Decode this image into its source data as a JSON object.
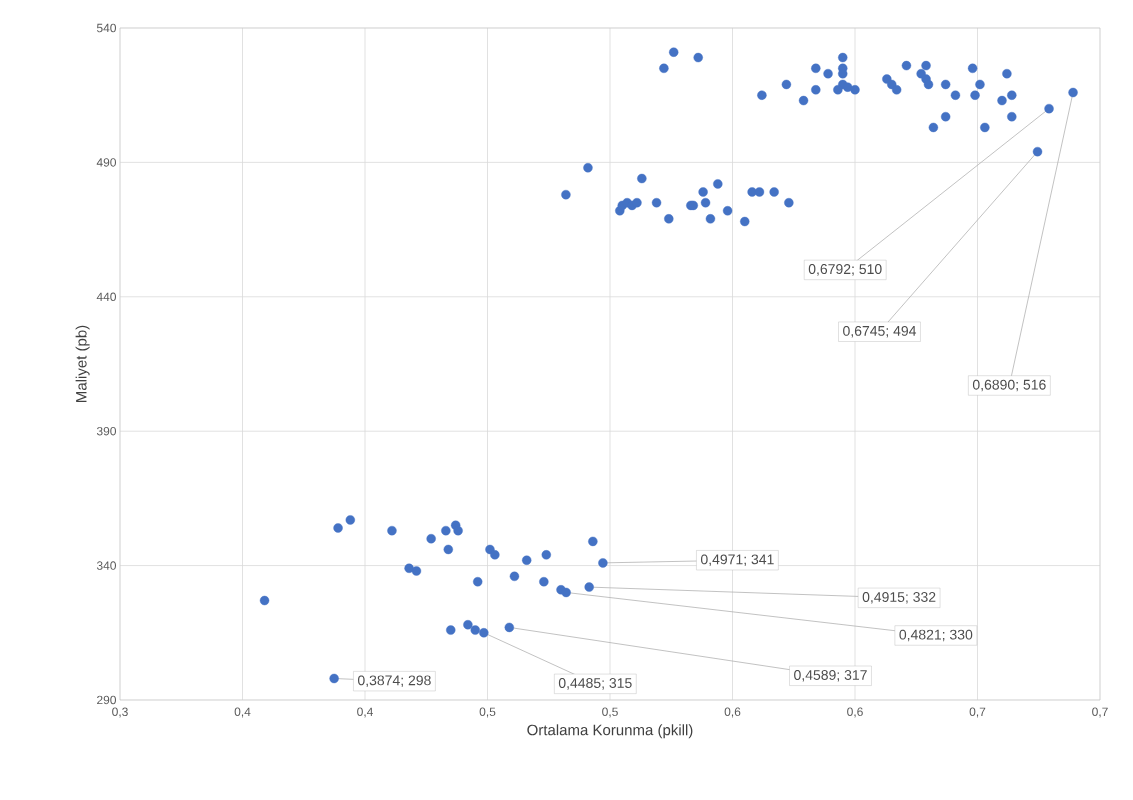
{
  "chart_data": {
    "type": "scatter",
    "xlabel": "Ortalama Korunma (pkill)",
    "ylabel": "Maliyet (pb)",
    "color": "#4472c4",
    "marker": "circle",
    "grid": true,
    "xlim": [
      0.3,
      0.7
    ],
    "ylim": [
      290,
      540
    ],
    "xticks": [
      {
        "value": 0.3,
        "label": "0,3"
      },
      {
        "value": 0.35,
        "label": "0,4"
      },
      {
        "value": 0.4,
        "label": "0,4"
      },
      {
        "value": 0.45,
        "label": "0,5"
      },
      {
        "value": 0.5,
        "label": "0,5"
      },
      {
        "value": 0.55,
        "label": "0,6"
      },
      {
        "value": 0.6,
        "label": "0,6"
      },
      {
        "value": 0.65,
        "label": "0,7"
      },
      {
        "value": 0.7,
        "label": "0,7"
      }
    ],
    "yticks": [
      290,
      340,
      390,
      440,
      490,
      540
    ],
    "x": [
      0.526,
      0.522,
      0.536,
      0.595,
      0.595,
      0.595,
      0.595,
      0.584,
      0.589,
      0.584,
      0.593,
      0.597,
      0.6,
      0.562,
      0.572,
      0.579,
      0.613,
      0.615,
      0.617,
      0.621,
      0.629,
      0.627,
      0.629,
      0.63,
      0.637,
      0.641,
      0.632,
      0.637,
      0.648,
      0.651,
      0.649,
      0.653,
      0.662,
      0.664,
      0.66,
      0.664,
      0.6792,
      0.6745,
      0.689,
      0.491,
      0.482,
      0.504,
      0.505,
      0.507,
      0.509,
      0.511,
      0.513,
      0.519,
      0.524,
      0.533,
      0.534,
      0.538,
      0.539,
      0.541,
      0.544,
      0.548,
      0.555,
      0.558,
      0.561,
      0.567,
      0.573,
      0.389,
      0.394,
      0.411,
      0.427,
      0.433,
      0.434,
      0.437,
      0.438,
      0.418,
      0.421,
      0.359,
      0.451,
      0.453,
      0.474,
      0.466,
      0.446,
      0.461,
      0.473,
      0.493,
      0.4971,
      0.48,
      0.4821,
      0.4915,
      0.4589,
      0.442,
      0.445,
      0.4485,
      0.435,
      0.3874
    ],
    "values": [
      531,
      525,
      529,
      529,
      525,
      523,
      519,
      525,
      523,
      517,
      517,
      518,
      517,
      515,
      519,
      513,
      521,
      519,
      517,
      526,
      526,
      523,
      521,
      519,
      519,
      515,
      503,
      507,
      525,
      519,
      515,
      503,
      523,
      515,
      513,
      507,
      510,
      494,
      516,
      488,
      478,
      472,
      474,
      475,
      474,
      475,
      484,
      475,
      469,
      474,
      474,
      479,
      475,
      469,
      482,
      472,
      468,
      479,
      479,
      479,
      475,
      354,
      357,
      353,
      350,
      353,
      346,
      355,
      353,
      339,
      338,
      327,
      346,
      344,
      344,
      342,
      334,
      336,
      334,
      349,
      341,
      331,
      330,
      332,
      317,
      318,
      316,
      315,
      316,
      298
    ],
    "annotations": [
      {
        "text": "0,6792; 510",
        "x": 0.6792,
        "y": 510
      },
      {
        "text": "0,6745; 494",
        "x": 0.6745,
        "y": 494
      },
      {
        "text": "0,6890; 516",
        "x": 0.689,
        "y": 516
      },
      {
        "text": "0,4971; 341",
        "x": 0.4971,
        "y": 341
      },
      {
        "text": "0,4915; 332",
        "x": 0.4915,
        "y": 332
      },
      {
        "text": "0,4821; 330",
        "x": 0.4821,
        "y": 330
      },
      {
        "text": "0,4589; 317",
        "x": 0.4589,
        "y": 317
      },
      {
        "text": "0,4485; 315",
        "x": 0.4485,
        "y": 315
      },
      {
        "text": "0,3874; 298",
        "x": 0.3874,
        "y": 298
      }
    ]
  }
}
